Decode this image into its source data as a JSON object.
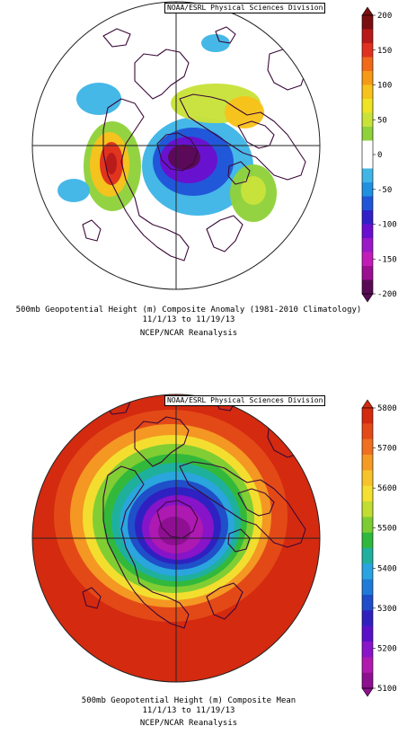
{
  "credit": "NOAA/ESRL Physical Sciences Division",
  "panels": [
    {
      "id": "anomaly",
      "caption_line1": "500mb Geopotential Height (m) Composite Anomaly (1981-2010 Climatology)",
      "caption_line2": "11/1/13  to 11/19/13",
      "caption_line3": "NCEP/NCAR Reanalysis",
      "colorbar": {
        "ticks": [
          "200",
          "150",
          "100",
          "50",
          "0",
          "-50",
          "-100",
          "-150",
          "-200"
        ],
        "colors": [
          "#7a0f0f",
          "#b81a1a",
          "#e0301e",
          "#f06a1a",
          "#f59a16",
          "#f7c21c",
          "#efe325",
          "#c8e23a",
          "#8fd23c",
          "#ffffff",
          "#ffffff",
          "#3fb6e6",
          "#2090e0",
          "#2055d8",
          "#3020c8",
          "#6a0fd0",
          "#9a18c8",
          "#c21cb8",
          "#9a1090",
          "#5a0a55"
        ]
      },
      "blobs": [
        {
          "cx": 220,
          "cy": 185,
          "rx": 62,
          "ry": 55,
          "color": "#3fb6e6"
        },
        {
          "cx": 215,
          "cy": 180,
          "rx": 45,
          "ry": 38,
          "color": "#2055d8"
        },
        {
          "cx": 210,
          "cy": 178,
          "rx": 32,
          "ry": 26,
          "color": "#6a0fd0"
        },
        {
          "cx": 205,
          "cy": 175,
          "rx": 18,
          "ry": 14,
          "color": "#5a0a55"
        },
        {
          "cx": 125,
          "cy": 185,
          "rx": 32,
          "ry": 50,
          "color": "#8fd23c"
        },
        {
          "cx": 122,
          "cy": 183,
          "rx": 22,
          "ry": 36,
          "color": "#f7c21c"
        },
        {
          "cx": 124,
          "cy": 182,
          "rx": 13,
          "ry": 24,
          "color": "#e0301e"
        },
        {
          "cx": 124,
          "cy": 182,
          "rx": 6,
          "ry": 12,
          "color": "#b81a1a"
        },
        {
          "cx": 282,
          "cy": 215,
          "rx": 26,
          "ry": 32,
          "color": "#8fd23c"
        },
        {
          "cx": 282,
          "cy": 212,
          "rx": 14,
          "ry": 16,
          "color": "#c8e23a"
        },
        {
          "cx": 240,
          "cy": 115,
          "rx": 50,
          "ry": 22,
          "color": "#c8e23a"
        },
        {
          "cx": 272,
          "cy": 125,
          "rx": 22,
          "ry": 18,
          "color": "#f7c21c"
        },
        {
          "cx": 110,
          "cy": 110,
          "rx": 25,
          "ry": 18,
          "color": "#3fb6e6"
        },
        {
          "cx": 82,
          "cy": 212,
          "rx": 18,
          "ry": 13,
          "color": "#3fb6e6"
        },
        {
          "cx": 240,
          "cy": 48,
          "rx": 16,
          "ry": 10,
          "color": "#3fb6e6"
        }
      ]
    },
    {
      "id": "mean",
      "caption_line1": "500mb Geopotential Height (m) Composite Mean",
      "caption_line2": "11/1/13  to 11/19/13",
      "caption_line3": "NCEP/NCAR Reanalysis",
      "colorbar": {
        "ticks": [
          "5800",
          "5700",
          "5600",
          "5500",
          "5400",
          "5300",
          "5200",
          "5100"
        ],
        "colors": [
          "#d42a10",
          "#e34a18",
          "#ee7020",
          "#f59a24",
          "#f8c22a",
          "#f3e030",
          "#c2dd32",
          "#7ccd34",
          "#2fb83c",
          "#1fb0a0",
          "#2aa4e0",
          "#1f7ad8",
          "#1f4cc8",
          "#3020c0",
          "#5a10c8",
          "#8a14c8",
          "#b01aaf",
          "#8c1090"
        ]
      },
      "rings": [
        {
          "cx": 190,
          "cy": 165,
          "rx": 130,
          "ry": 118,
          "color": "#e34a18"
        },
        {
          "cx": 190,
          "cy": 165,
          "rx": 112,
          "ry": 102,
          "color": "#f59a24"
        },
        {
          "cx": 192,
          "cy": 167,
          "rx": 100,
          "ry": 92,
          "color": "#f3e030"
        },
        {
          "cx": 193,
          "cy": 168,
          "rx": 90,
          "ry": 83,
          "color": "#7ccd34"
        },
        {
          "cx": 195,
          "cy": 170,
          "rx": 80,
          "ry": 74,
          "color": "#2fb83c"
        },
        {
          "cx": 196,
          "cy": 172,
          "rx": 72,
          "ry": 66,
          "color": "#1fb0a0"
        },
        {
          "cx": 197,
          "cy": 174,
          "rx": 64,
          "ry": 58,
          "color": "#2aa4e0"
        },
        {
          "cx": 198,
          "cy": 175,
          "rx": 56,
          "ry": 50,
          "color": "#1f4cc8"
        },
        {
          "cx": 198,
          "cy": 176,
          "rx": 48,
          "ry": 43,
          "color": "#3020c0"
        },
        {
          "cx": 198,
          "cy": 178,
          "rx": 40,
          "ry": 36,
          "color": "#8a14c8"
        },
        {
          "cx": 196,
          "cy": 180,
          "rx": 30,
          "ry": 27,
          "color": "#b01aaf"
        },
        {
          "cx": 194,
          "cy": 182,
          "rx": 18,
          "ry": 16,
          "color": "#8c1090"
        }
      ]
    }
  ]
}
